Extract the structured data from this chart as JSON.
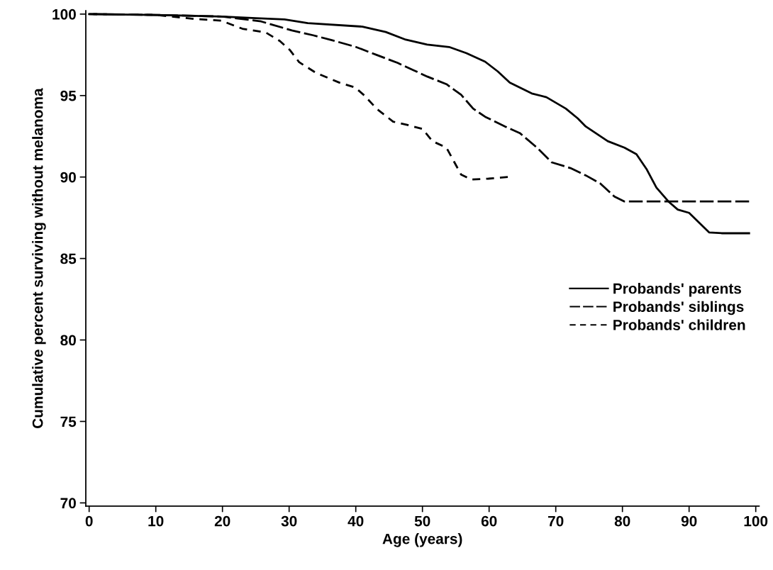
{
  "chart_data": {
    "type": "line",
    "xlabel": "Age (years)",
    "ylabel": "Cumulative percent surviving without melanoma",
    "xlim": [
      -0.5,
      100.5
    ],
    "ylim": [
      69.8,
      100.2
    ],
    "xticks": [
      0,
      10,
      20,
      30,
      40,
      50,
      60,
      70,
      80,
      90,
      100
    ],
    "yticks": [
      70,
      75,
      80,
      85,
      90,
      95,
      100
    ],
    "grid": false,
    "legend": "right",
    "marker": "none",
    "series": [
      {
        "name": "Probands' parents",
        "color": "#000000",
        "line_style": "solid",
        "x": [
          0,
          10,
          20,
          25,
          29.3,
          32.8,
          41,
          44.5,
          47.5,
          50.7,
          54,
          56.6,
          59.4,
          61.3,
          63.1,
          66.4,
          68.6,
          71.5,
          73.3,
          74.5,
          77.8,
          80.3,
          82.1,
          83.6,
          85.1,
          86.9,
          88.3,
          90,
          91.5,
          93,
          95,
          99
        ],
        "values": [
          100,
          99.95,
          99.85,
          99.75,
          99.67,
          99.45,
          99.23,
          98.9,
          98.43,
          98.13,
          97.98,
          97.6,
          97.08,
          96.48,
          95.8,
          95.13,
          94.9,
          94.2,
          93.6,
          93.1,
          92.2,
          91.8,
          91.4,
          90.5,
          89.35,
          88.5,
          88.0,
          87.8,
          87.2,
          86.6,
          86.55,
          86.55
        ]
      },
      {
        "name": "Probands' siblings",
        "color": "#000000",
        "line_style": "dashed",
        "x": [
          0,
          10,
          20,
          25.8,
          30.4,
          33.6,
          36.4,
          39.9,
          43.1,
          46.3,
          48.7,
          50.7,
          53.6,
          55.8,
          57.6,
          59.4,
          62.4,
          64.6,
          67.2,
          69.4,
          72.2,
          74.5,
          76.7,
          78.8,
          80.3,
          90,
          99
        ],
        "values": [
          100,
          99.95,
          99.85,
          99.55,
          99.0,
          98.7,
          98.4,
          98.0,
          97.5,
          97.0,
          96.55,
          96.17,
          95.7,
          95.05,
          94.2,
          93.7,
          93.1,
          92.7,
          91.8,
          90.9,
          90.55,
          90.1,
          89.6,
          88.8,
          88.5,
          88.5,
          88.5
        ]
      },
      {
        "name": "Probands' children",
        "color": "#000000",
        "line_style": "dotted",
        "x": [
          0,
          10,
          15.9,
          19.8,
          23,
          26.5,
          28.6,
          30.1,
          31.5,
          34,
          37.5,
          39.9,
          41.3,
          43.1,
          45.6,
          47.7,
          50,
          51.5,
          53.6,
          54.8,
          55.8,
          57.3,
          59.9,
          62.8
        ],
        "values": [
          100,
          99.95,
          99.7,
          99.6,
          99.1,
          98.87,
          98.35,
          97.8,
          97.05,
          96.4,
          95.8,
          95.5,
          95.0,
          94.2,
          93.4,
          93.2,
          92.95,
          92.2,
          91.8,
          90.9,
          90.15,
          89.85,
          89.9,
          90.0
        ]
      }
    ]
  }
}
